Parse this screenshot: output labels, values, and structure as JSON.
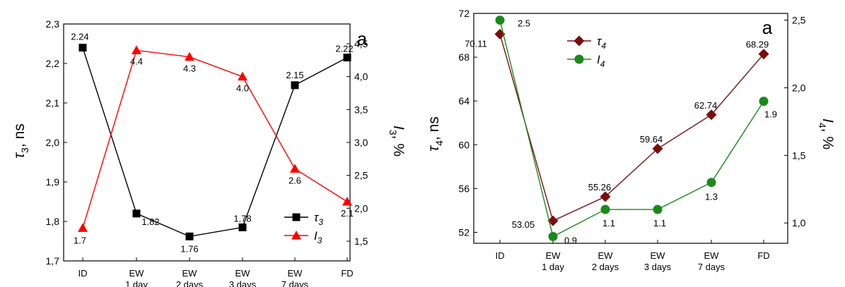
{
  "chart_data": [
    {
      "type": "line",
      "panel_letter": "a",
      "categories": [
        "ID",
        "EW\n1 day",
        "EW\n2 days",
        "EW\n3 days",
        "EW\n7 days",
        "FD"
      ],
      "ylabel_left": {
        "sym": "τ",
        "sub": "3",
        "unit": ", ns"
      },
      "ylabel_right": {
        "sym": "I",
        "sub": "3",
        "unit": ", %"
      },
      "ylim_left": [
        1.7,
        2.3
      ],
      "yticks_left": [
        1.7,
        1.8,
        1.9,
        2.0,
        2.1,
        2.2,
        2.3
      ],
      "yticklabels_left": [
        "1,7",
        "1,8",
        "1,9",
        "2,0",
        "2,1",
        "2,2",
        "2,3"
      ],
      "ylim_right": [
        1.2,
        4.8
      ],
      "yticks_right": [
        1.5,
        2.0,
        2.5,
        3.0,
        3.5,
        4.0,
        4.5
      ],
      "yticklabels_right": [
        "1,5",
        "2,0",
        "2,5",
        "3,0",
        "3,5",
        "4,0",
        "4,5"
      ],
      "legend_position": "bottom-right",
      "series": [
        {
          "name": "τ3",
          "sym": "τ",
          "sub": "3",
          "axis": "left",
          "color": "#000000",
          "marker": "square",
          "values": [
            2.24,
            1.82,
            1.762,
            1.785,
            2.145,
            2.215
          ],
          "labels": [
            "2.24",
            "1.82",
            "1.76",
            "1.78",
            "2.15",
            "2.22"
          ]
        },
        {
          "name": "I3",
          "sym": "I",
          "sub": "3",
          "axis": "right",
          "color": "#ff0000",
          "marker": "triangle",
          "values": [
            1.7,
            4.4,
            4.3,
            4.0,
            2.6,
            2.1
          ],
          "labels": [
            "1.7",
            "4.4",
            "4.3",
            "4.0",
            "2.6",
            "2.1"
          ]
        }
      ]
    },
    {
      "type": "line",
      "panel_letter": "a",
      "categories": [
        "ID",
        "EW\n1 day",
        "EW\n2 days",
        "EW\n3 days",
        "EW\n7 days",
        "FD"
      ],
      "ylabel_left": {
        "sym": "τ",
        "sub": "4",
        "unit": ", ns"
      },
      "ylabel_right": {
        "sym": "I",
        "sub": "4",
        "unit": ", %"
      },
      "ylim_left": [
        51,
        72
      ],
      "yticks_left": [
        52,
        56,
        60,
        64,
        68,
        72
      ],
      "yticklabels_left": [
        "52",
        "56",
        "60",
        "64",
        "68",
        "72"
      ],
      "ylim_right": [
        0.85,
        2.55
      ],
      "yticks_right": [
        1.0,
        1.5,
        2.0,
        2.5
      ],
      "yticklabels_right": [
        "1,0",
        "1,5",
        "2,0",
        "2,5"
      ],
      "legend_position": "top-left",
      "series": [
        {
          "name": "τ4",
          "sym": "τ",
          "sub": "4",
          "axis": "left",
          "color": "#7b0d0d",
          "marker": "diamond",
          "values": [
            70.11,
            53.05,
            55.26,
            59.64,
            62.74,
            68.29
          ],
          "labels": [
            "70.11",
            "53.05",
            "55.26",
            "59.64",
            "62.74",
            "68.29"
          ]
        },
        {
          "name": "I4",
          "sym": "I",
          "sub": "4",
          "axis": "right",
          "color": "#1a8a1a",
          "marker": "circle",
          "values": [
            2.5,
            0.9,
            1.1,
            1.1,
            1.3,
            1.9
          ],
          "labels": [
            "2.5",
            "0.9",
            "1.1",
            "1.1",
            "1.3",
            "1.9"
          ]
        }
      ]
    }
  ]
}
